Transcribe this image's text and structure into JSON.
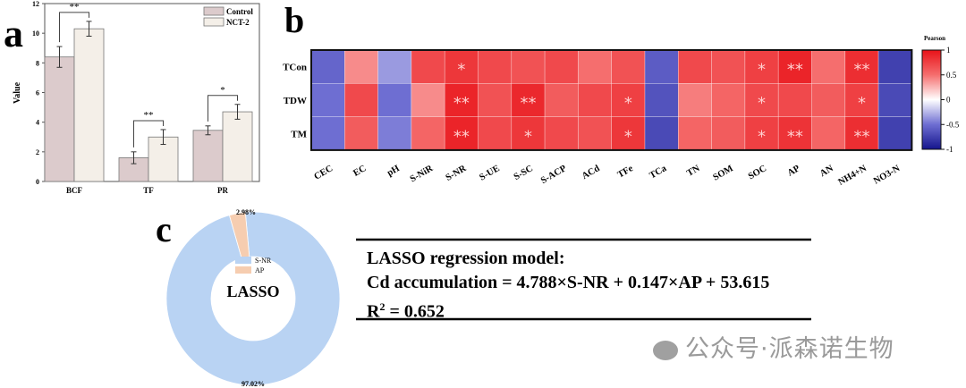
{
  "panel_labels": {
    "a": "a",
    "b": "b",
    "c": "c"
  },
  "chart_data": [
    {
      "type": "bar",
      "panel": "a",
      "ylabel": "Value",
      "ylim": [
        0,
        12
      ],
      "yticks": [
        0,
        2,
        4,
        6,
        8,
        10,
        12
      ],
      "categories": [
        "BCF",
        "TF",
        "PR"
      ],
      "series": [
        {
          "name": "Control",
          "color": "#dccbcc",
          "values": [
            8.4,
            1.6,
            3.45
          ],
          "errors": [
            0.7,
            0.4,
            0.3
          ]
        },
        {
          "name": "NCT-2",
          "color": "#f4efe8",
          "values": [
            10.3,
            3.0,
            4.7
          ],
          "errors": [
            0.5,
            0.5,
            0.5
          ]
        }
      ],
      "significance": [
        "**",
        "**",
        "*"
      ],
      "legend": "top-right"
    },
    {
      "type": "heatmap",
      "panel": "b",
      "colorbar_title": "Pearson",
      "colorbar_ticks": [
        "1",
        "0.5",
        "0",
        "-0.5",
        "-1"
      ],
      "range": [
        -1,
        1
      ],
      "rows": [
        "TCon",
        "TDW",
        "TM"
      ],
      "columns": [
        "CEC",
        "EC",
        "pH",
        "S-NiR",
        "S-NR",
        "S-UE",
        "S-SC",
        "S-ACP",
        "ACd",
        "TFe",
        "TCa",
        "TN",
        "SOM",
        "SOC",
        "AP",
        "AN",
        "NH4+N",
        "NO3-N"
      ],
      "values": [
        [
          -0.55,
          0.4,
          -0.35,
          0.7,
          0.8,
          0.7,
          0.65,
          0.7,
          0.5,
          0.65,
          -0.6,
          0.7,
          0.65,
          0.75,
          0.9,
          0.5,
          0.85,
          -0.75
        ],
        [
          -0.5,
          0.7,
          -0.5,
          0.4,
          0.9,
          0.65,
          0.88,
          0.6,
          0.7,
          0.75,
          -0.65,
          0.45,
          0.55,
          0.7,
          0.7,
          0.6,
          0.75,
          -0.7
        ],
        [
          -0.5,
          0.6,
          -0.45,
          0.55,
          0.9,
          0.7,
          0.8,
          0.7,
          0.65,
          0.8,
          -0.7,
          0.55,
          0.6,
          0.75,
          0.82,
          0.55,
          0.85,
          -0.75
        ]
      ],
      "stars": [
        [
          "",
          "",
          "",
          "",
          "*",
          "",
          "",
          "",
          "",
          "",
          "",
          "",
          "",
          "*",
          "**",
          "",
          "**",
          ""
        ],
        [
          "",
          "",
          "",
          "",
          "**",
          "",
          "**",
          "",
          "",
          "*",
          "",
          "",
          "",
          "*",
          "",
          "",
          "*",
          ""
        ],
        [
          "",
          "",
          "",
          "",
          "**",
          "",
          "*",
          "",
          "",
          "*",
          "",
          "",
          "",
          "*",
          "**",
          "",
          "**",
          ""
        ]
      ]
    },
    {
      "type": "pie",
      "panel": "c",
      "center_label": "LASSO",
      "slices": [
        {
          "name": "S-NR",
          "value": 97.02,
          "label": "97.02%",
          "color": "#b9d3f3"
        },
        {
          "name": "AP",
          "value": 2.98,
          "label": "2.98%",
          "color": "#f6cdb0"
        }
      ]
    }
  ],
  "model_box": {
    "title": "LASSO regression model:",
    "equation": "Cd accumulation = 4.788×S-NR + 0.147×AP + 53.615",
    "r2_prefix": "R",
    "r2_sup": "2",
    "r2_value": " = 0.652"
  },
  "watermark": "公众号·派森诺生物"
}
